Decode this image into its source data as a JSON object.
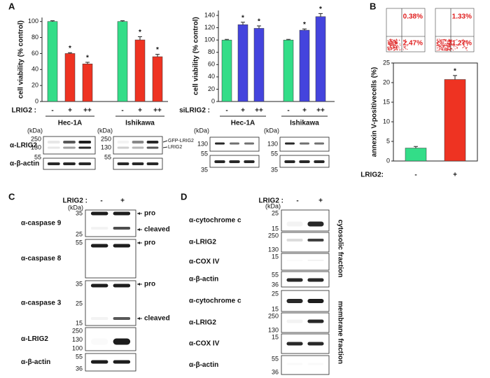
{
  "panel_labels": [
    "A",
    "B",
    "C",
    "D"
  ],
  "chart_data": [
    {
      "type": "bar",
      "y_label": "cell viability (% control)",
      "x_label": "LRIG2 :",
      "groups": [
        "Hec-1A",
        "Ishikawa"
      ],
      "categories": [
        "-",
        "+",
        "++",
        "-",
        "+",
        "++"
      ],
      "values": [
        100,
        60,
        47,
        100,
        77,
        56
      ],
      "errors": [
        1,
        1,
        2,
        1,
        4,
        3
      ],
      "colors": [
        "#33dd88",
        "#ee3322",
        "#ee3322",
        "#33dd88",
        "#ee3322",
        "#ee3322"
      ],
      "value_annotations": [
        null,
        "*",
        "*",
        null,
        "*",
        "*"
      ],
      "ylim": [
        0,
        105
      ],
      "yticks": [
        0,
        20,
        40,
        60,
        80,
        100
      ]
    },
    {
      "type": "bar",
      "y_label": "cell viability (% control)",
      "x_label": "siLRIG2 :",
      "groups": [
        "Hec-1A",
        "Ishikawa"
      ],
      "categories": [
        "-",
        "+",
        "++",
        "-",
        "+",
        "++"
      ],
      "values": [
        100,
        125,
        119,
        100,
        116,
        138
      ],
      "errors": [
        1,
        4,
        4,
        1,
        2,
        5
      ],
      "colors": [
        "#33dd88",
        "#4444dd",
        "#4444dd",
        "#33dd88",
        "#4444dd",
        "#4444dd"
      ],
      "value_annotations": [
        null,
        "*",
        "*",
        null,
        "*",
        "*"
      ],
      "ylim": [
        0,
        148
      ],
      "yticks": [
        0,
        20,
        40,
        60,
        80,
        100,
        120,
        140
      ]
    },
    {
      "type": "bar",
      "y_label": "annexin V-positivecells (%)",
      "x_label": "LRIG2:",
      "categories": [
        "-",
        "+"
      ],
      "values": [
        3.3,
        20.8
      ],
      "errors": [
        0.4,
        1.0
      ],
      "colors": [
        "#33dd88",
        "#ee3322"
      ],
      "value_annotations": [
        null,
        "*"
      ],
      "ylim": [
        0,
        25
      ],
      "yticks": [
        0,
        5,
        10,
        15,
        20,
        25
      ]
    }
  ],
  "flow_cytometry": {
    "percentages": [
      [
        "0.38%",
        "2.47%"
      ],
      [
        "1.33%",
        "21.27%"
      ]
    ]
  },
  "panel_a_blots": {
    "row_labels": [
      "α-LRIG2",
      "α-β-actin"
    ],
    "kda": "(kDa)",
    "markers": [
      "250",
      "130",
      "55"
    ],
    "band_labels": [
      "GFP-LRIG2",
      "LRIG2"
    ],
    "si_markers": [
      "130",
      "55",
      "35"
    ]
  },
  "panel_c": {
    "header": "LRIG2 :",
    "lanes": [
      "-",
      "+"
    ],
    "kda": "(kDa)",
    "rows": [
      {
        "label": "α-caspase 9",
        "markers": [
          "35",
          "25"
        ],
        "bands": [
          "pro",
          "cleaved"
        ]
      },
      {
        "label": "α-caspase 8",
        "markers": [
          "55"
        ],
        "bands": [
          "pro"
        ]
      },
      {
        "label": "α-caspase 3",
        "markers": [
          "35",
          "25",
          "15"
        ],
        "bands": [
          "pro",
          "cleaved"
        ]
      },
      {
        "label": "α-LRIG2",
        "markers": [
          "250",
          "130",
          "100"
        ]
      },
      {
        "label": "α-β-actin",
        "markers": [
          "55",
          "36"
        ]
      }
    ]
  },
  "panel_d": {
    "header": "LRIG2 :",
    "lanes": [
      "-",
      "+"
    ],
    "kda": "(kDa)",
    "fractions": [
      {
        "label": "cytosolic fraction",
        "rows": [
          {
            "label": "α-cytochrome c",
            "markers": [
              "25",
              "15"
            ]
          },
          {
            "label": "α-LRIG2",
            "markers": [
              "250",
              "130"
            ]
          },
          {
            "label": "α-COX IV",
            "markers": [
              "15"
            ]
          },
          {
            "label": "α-β-actin",
            "markers": [
              "55",
              "36"
            ]
          }
        ]
      },
      {
        "label": "membrane fraction",
        "rows": [
          {
            "label": "α-cytochrome c",
            "markers": [
              "25",
              "15"
            ]
          },
          {
            "label": "α-LRIG2",
            "markers": [
              "250",
              "130"
            ]
          },
          {
            "label": "α-COX IV",
            "markers": [
              "15"
            ]
          },
          {
            "label": "α-β-actin",
            "markers": [
              "55",
              "36"
            ]
          }
        ]
      }
    ]
  }
}
